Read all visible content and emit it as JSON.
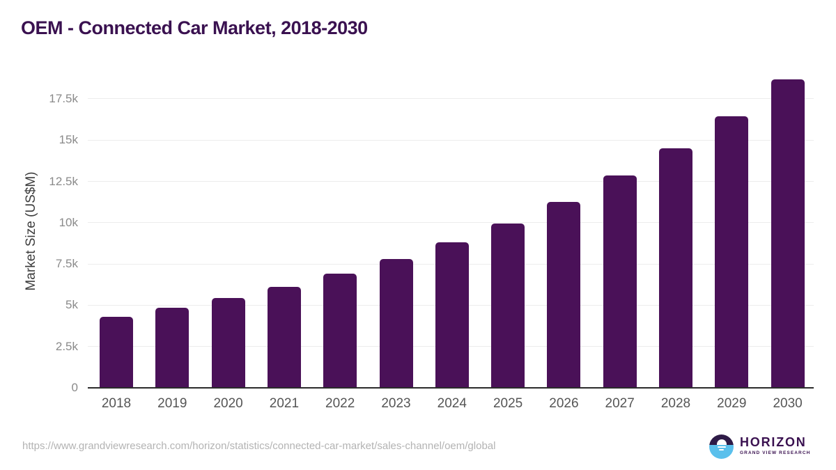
{
  "title": "OEM - Connected Car Market, 2018-2030",
  "chart_data": {
    "type": "bar",
    "title": "OEM - Connected Car Market, 2018-2030",
    "categories": [
      "2018",
      "2019",
      "2020",
      "2021",
      "2022",
      "2023",
      "2024",
      "2025",
      "2026",
      "2027",
      "2028",
      "2029",
      "2030"
    ],
    "values": [
      4300,
      4850,
      5450,
      6100,
      6900,
      7800,
      8810,
      9960,
      11250,
      12850,
      14500,
      16450,
      18700
    ],
    "series_name": "Market Size",
    "xlabel": "",
    "ylabel": "Market Size (US$M)",
    "ylim": [
      0,
      19060
    ],
    "yticks": [
      0,
      2500,
      5000,
      7500,
      10000,
      12500,
      15000,
      17500
    ],
    "ytick_labels": [
      "0",
      "2.5k",
      "5k",
      "7.5k",
      "10k",
      "12.5k",
      "15k",
      "17.5k"
    ],
    "grid": "horizontal",
    "legend": false,
    "bar_color": "#4a1158"
  },
  "footer": {
    "source_url": "https://www.grandviewresearch.com/horizon/statistics/connected-car-market/sales-channel/oem/global",
    "logo": {
      "brand": "HORIZON",
      "sub_brand": "GRAND VIEW RESEARCH"
    }
  },
  "colors": {
    "background": "#ffffff",
    "title": "#3a1150",
    "bar": "#4a1158",
    "grid_line": "#ececec",
    "axis_line": "#2b2b2b",
    "x_tick_label": "#555555",
    "y_tick_label": "#8a8a8a",
    "y_axis_title": "#3d3d3d",
    "source_url": "#b3b3b3",
    "logo_dark": "#2e1b47",
    "logo_blue": "#5ac0ec"
  }
}
